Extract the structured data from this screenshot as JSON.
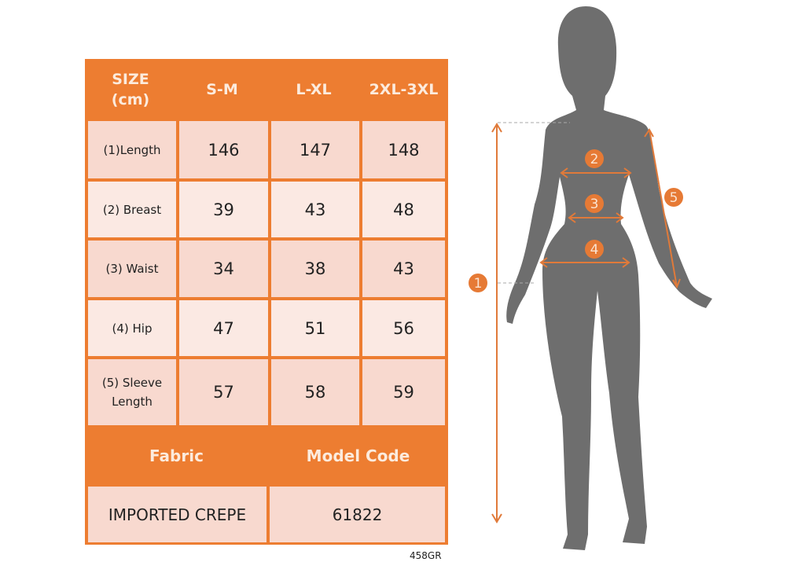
{
  "table": {
    "header": {
      "size_label": "SIZE\n(cm)",
      "sizes": [
        "S-M",
        "L-XL",
        "2XL-3XL"
      ]
    },
    "rows": [
      {
        "label": "(1)Length",
        "values": [
          "146",
          "147",
          "148"
        ]
      },
      {
        "label": "(2) Breast",
        "values": [
          "39",
          "43",
          "48"
        ]
      },
      {
        "label": "(3) Waist",
        "values": [
          "34",
          "38",
          "43"
        ]
      },
      {
        "label": "(4) Hip",
        "values": [
          "47",
          "51",
          "56"
        ]
      },
      {
        "label": "(5) Sleeve Length",
        "values": [
          "57",
          "58",
          "59"
        ]
      }
    ],
    "footer": {
      "fabric_label": "Fabric",
      "model_code_label": "Model Code",
      "fabric": "IMPORTED CREPE",
      "model_code": "61822"
    }
  },
  "product_code": "458GR",
  "diagram": {
    "markers": [
      "1",
      "2",
      "3",
      "4",
      "5"
    ]
  },
  "colors": {
    "accent": "#ED7D31",
    "cell_dark": "#F8D9CF",
    "cell_light": "#FBE9E3",
    "silhouette": "#6E6E6E"
  }
}
